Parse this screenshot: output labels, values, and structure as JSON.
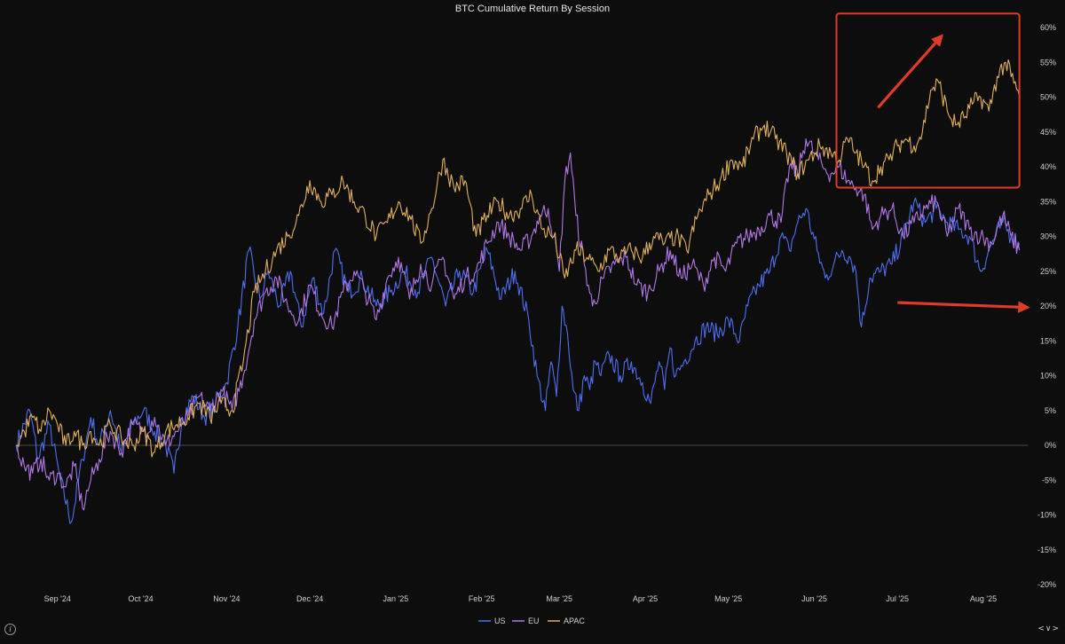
{
  "chart_data": {
    "type": "line",
    "title": "BTC Cumulative Return By Session",
    "xlabel": "",
    "ylabel": "",
    "ylim": [
      -20,
      60
    ],
    "y_ticks": [
      "60%",
      "55%",
      "50%",
      "45%",
      "40%",
      "35%",
      "30%",
      "25%",
      "20%",
      "15%",
      "10%",
      "5%",
      "0%",
      "-5%",
      "-10%",
      "-15%",
      "-20%"
    ],
    "y_tick_values": [
      60,
      55,
      50,
      45,
      40,
      35,
      30,
      25,
      20,
      15,
      10,
      5,
      0,
      -5,
      -10,
      -15,
      -20
    ],
    "x_range_days": [
      0,
      365
    ],
    "x_ticks": [
      {
        "label": "Sep '24",
        "day": 15
      },
      {
        "label": "Oct '24",
        "day": 45
      },
      {
        "label": "Nov '24",
        "day": 76
      },
      {
        "label": "Dec '24",
        "day": 106
      },
      {
        "label": "Jan '25",
        "day": 137
      },
      {
        "label": "Feb '25",
        "day": 168
      },
      {
        "label": "Mar '25",
        "day": 196
      },
      {
        "label": "Apr '25",
        "day": 227
      },
      {
        "label": "May '25",
        "day": 257
      },
      {
        "label": "Jun '25",
        "day": 288
      },
      {
        "label": "Jul '25",
        "day": 318
      },
      {
        "label": "Aug '25",
        "day": 349
      }
    ],
    "zero_line": true,
    "legend_position": "bottom-center",
    "series": [
      {
        "name": "US",
        "color": "#4f6ff0",
        "x": [
          0,
          5,
          8,
          12,
          16,
          20,
          24,
          27,
          30,
          34,
          38,
          42,
          46,
          50,
          54,
          57,
          60,
          64,
          68,
          72,
          76,
          80,
          84,
          88,
          91,
          95,
          99,
          103,
          107,
          111,
          115,
          120,
          125,
          130,
          135,
          140,
          145,
          150,
          155,
          160,
          165,
          170,
          175,
          180,
          185,
          188,
          191,
          193,
          195,
          197,
          199,
          201,
          203,
          205,
          207,
          209,
          211,
          214,
          218,
          222,
          226,
          229,
          232,
          234,
          236,
          238,
          241,
          245,
          249,
          253,
          257,
          261,
          264,
          268,
          272,
          276,
          279,
          282,
          285,
          289,
          292,
          295,
          298,
          301,
          303,
          305,
          308,
          312,
          316,
          320,
          324,
          328,
          332,
          336,
          340,
          344,
          348,
          352,
          356,
          359,
          362
        ],
        "values": [
          0,
          5,
          -2,
          3,
          -5,
          -11,
          -2,
          4,
          0,
          5,
          -1,
          3,
          5,
          2,
          0,
          -4,
          4,
          7,
          4,
          6,
          9,
          17,
          28,
          21,
          25,
          20,
          25,
          17,
          24,
          19,
          28,
          22,
          24,
          20,
          22,
          25,
          22,
          27,
          20,
          25,
          22,
          28,
          21,
          25,
          18,
          10,
          5,
          12,
          7,
          20,
          16,
          8,
          5,
          10,
          8,
          12,
          10,
          13,
          10,
          12,
          9,
          6,
          12,
          8,
          14,
          10,
          12,
          15,
          17,
          16,
          18,
          15,
          20,
          23,
          25,
          30,
          28,
          32,
          34,
          28,
          24,
          26,
          28,
          27,
          25,
          17,
          24,
          25,
          26,
          30,
          35,
          32,
          34,
          32,
          31,
          30,
          25,
          29,
          32,
          30,
          29
        ]
      },
      {
        "name": "EU",
        "color": "#b277e6",
        "x": [
          0,
          3,
          6,
          9,
          12,
          15,
          18,
          21,
          24,
          27,
          30,
          34,
          38,
          42,
          46,
          50,
          54,
          58,
          62,
          66,
          70,
          74,
          78,
          82,
          86,
          90,
          94,
          98,
          102,
          106,
          110,
          114,
          118,
          122,
          126,
          130,
          134,
          138,
          142,
          146,
          150,
          154,
          158,
          162,
          166,
          170,
          174,
          178,
          182,
          186,
          189,
          192,
          194,
          196,
          198,
          200,
          202,
          205,
          208,
          212,
          216,
          220,
          224,
          228,
          232,
          236,
          240,
          244,
          248,
          252,
          256,
          260,
          264,
          268,
          272,
          276,
          279,
          282,
          285,
          288,
          291,
          294,
          297,
          300,
          303,
          306,
          309,
          312,
          316,
          320,
          324,
          328,
          332,
          336,
          340,
          344,
          348,
          352,
          356,
          359,
          362
        ],
        "values": [
          0,
          -3,
          -4,
          -2,
          -5,
          -4,
          -6,
          -3,
          -9,
          -5,
          -2,
          2,
          -1,
          3,
          2,
          4,
          0,
          2,
          4,
          7,
          5,
          8,
          5,
          10,
          18,
          22,
          24,
          20,
          18,
          23,
          19,
          17,
          22,
          25,
          22,
          18,
          24,
          27,
          21,
          26,
          23,
          27,
          21,
          24,
          25,
          29,
          32,
          30,
          28,
          30,
          33,
          34,
          30,
          25,
          38,
          42,
          33,
          26,
          20,
          24,
          26,
          27,
          23,
          22,
          25,
          28,
          24,
          26,
          23,
          27,
          25,
          29,
          30,
          31,
          33,
          32,
          40,
          39,
          44,
          42,
          40,
          39,
          40,
          38,
          37,
          36,
          31,
          33,
          34,
          30,
          32,
          34,
          35,
          30,
          34,
          31,
          30,
          29,
          33,
          30,
          28
        ]
      },
      {
        "name": "APAC",
        "color": "#e1b05a",
        "x": [
          0,
          3,
          6,
          9,
          12,
          15,
          18,
          21,
          24,
          27,
          30,
          34,
          38,
          42,
          46,
          50,
          54,
          58,
          62,
          66,
          70,
          74,
          78,
          82,
          86,
          90,
          94,
          98,
          102,
          106,
          110,
          114,
          118,
          122,
          126,
          130,
          134,
          138,
          142,
          146,
          150,
          154,
          158,
          162,
          166,
          170,
          174,
          178,
          182,
          186,
          190,
          194,
          198,
          202,
          206,
          210,
          214,
          218,
          222,
          226,
          230,
          234,
          238,
          242,
          246,
          250,
          254,
          258,
          262,
          266,
          270,
          274,
          278,
          282,
          286,
          290,
          294,
          297,
          300,
          303,
          306,
          309,
          312,
          315,
          318,
          321,
          324,
          327,
          330,
          333,
          336,
          339,
          342,
          345,
          348,
          351,
          354,
          357,
          360,
          362
        ],
        "values": [
          0,
          2,
          4,
          2,
          5,
          3,
          0,
          2,
          0,
          2,
          0,
          3,
          1,
          0,
          2,
          -1,
          2,
          3,
          4,
          6,
          4,
          6,
          5,
          12,
          22,
          25,
          28,
          30,
          33,
          38,
          35,
          36,
          38,
          35,
          33,
          30,
          32,
          35,
          33,
          29,
          34,
          41,
          37,
          38,
          30,
          33,
          35,
          33,
          34,
          36,
          31,
          30,
          24,
          28,
          27,
          25,
          28,
          27,
          28,
          27,
          30,
          29,
          30,
          28,
          33,
          36,
          38,
          41,
          40,
          44,
          46,
          44,
          42,
          39,
          41,
          43,
          42,
          41,
          44,
          42,
          40,
          38,
          40,
          41,
          43,
          44,
          43,
          45,
          51,
          52,
          48,
          46,
          47,
          49,
          50,
          48,
          53,
          55,
          52,
          50
        ]
      }
    ],
    "annotations": [
      {
        "type": "box",
        "color": "#e03a2a",
        "x_range": [
          296,
          362
        ],
        "y_range": [
          37,
          62
        ]
      },
      {
        "type": "arrow",
        "color": "#e03a2a",
        "from": [
          311,
          48.5
        ],
        "to": [
          334,
          58.8
        ]
      },
      {
        "type": "arrow",
        "color": "#e03a2a",
        "from": [
          318,
          20.5
        ],
        "to": [
          365,
          19.8
        ]
      }
    ]
  },
  "controls": {
    "info_glyph": "i",
    "nav_arrows": "<∨>"
  }
}
